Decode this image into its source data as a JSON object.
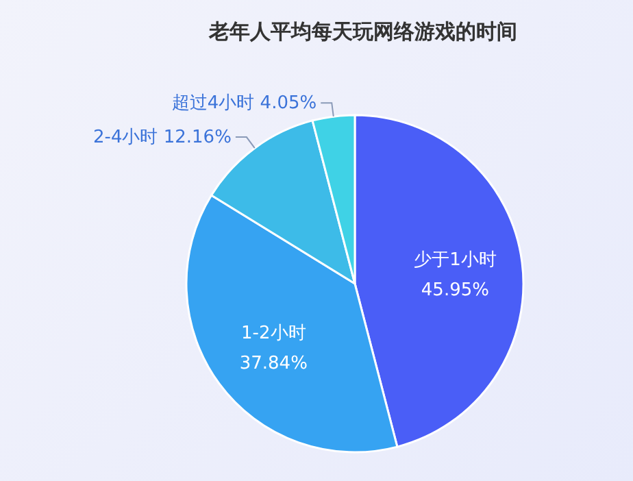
{
  "chart_data": {
    "type": "pie",
    "title": "老年人平均每天玩网络游戏的时间",
    "categories": [
      "少于1小时",
      "1-2小时",
      "2-4小时",
      "超过4小时"
    ],
    "values": [
      45.95,
      37.84,
      12.16,
      4.05
    ],
    "colors": [
      "#4a5ef7",
      "#36a3f2",
      "#3dbbe8",
      "#3fd2e6"
    ],
    "value_labels": [
      "45.95%",
      "37.84%",
      "12.16%",
      "4.05%"
    ]
  }
}
